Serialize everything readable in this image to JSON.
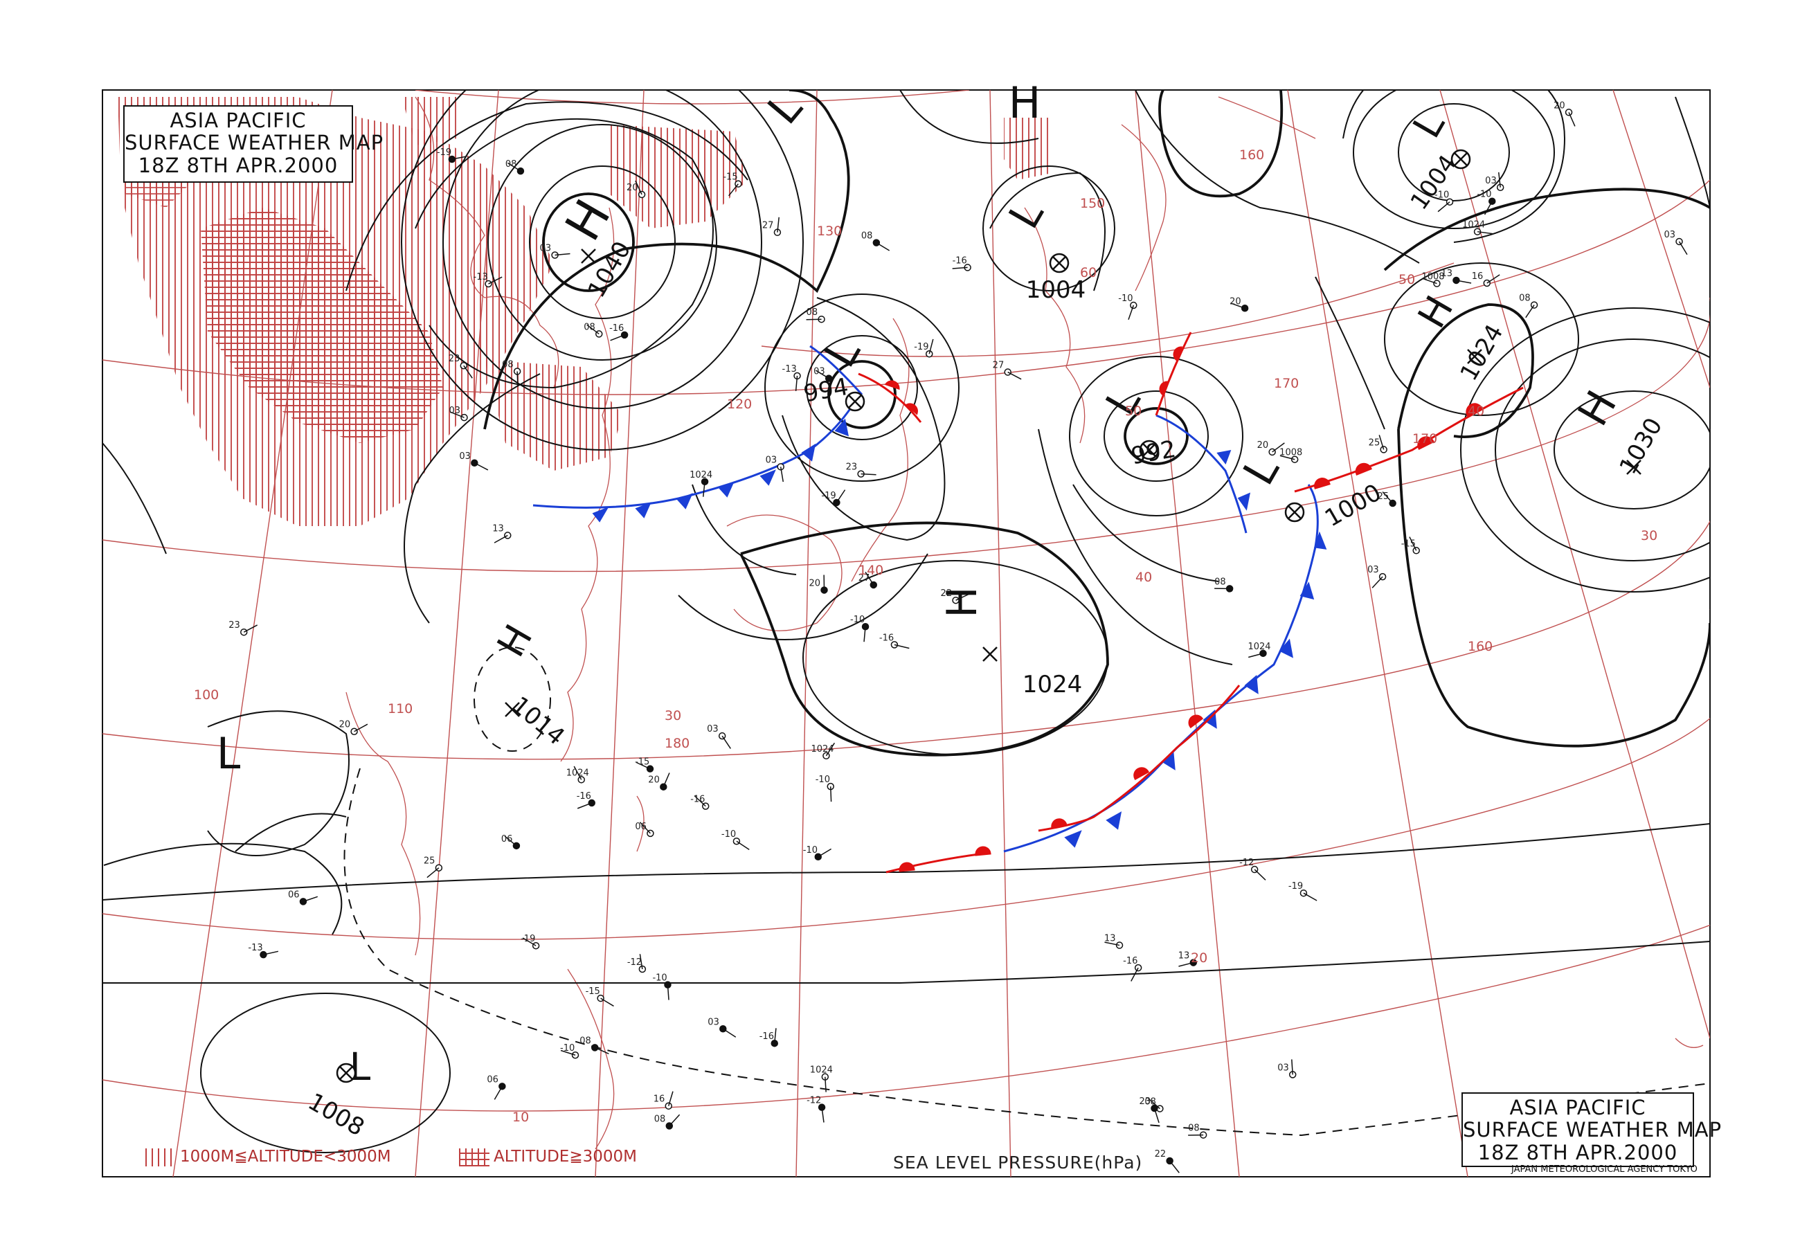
{
  "title": {
    "line1": "ASIA PACIFIC",
    "line2": "SURFACE WEATHER MAP",
    "line3": "18Z  8TH APR.2000"
  },
  "legend": {
    "mid_altitude": "1000M≦ALTITUDE<3000M",
    "high_altitude": "ALTITUDE≧3000M"
  },
  "sea_level_pressure_label": "SEA LEVEL PRESSURE(hPa)",
  "agency": "JAPAN METEOROLOGICAL AGENCY TOKYO",
  "colors": {
    "isobar": "#111111",
    "grid": "#c05050",
    "cold_front": "#1a3fd6",
    "warm_front": "#e01010",
    "terrain_hatch": "#c04040"
  },
  "pressure_systems": [
    {
      "type": "H",
      "value": "1040"
    },
    {
      "type": "L",
      "value": "994"
    },
    {
      "type": "L",
      "value": "1004"
    },
    {
      "type": "L",
      "value": "992"
    },
    {
      "type": "L",
      "value": "1000"
    },
    {
      "type": "L",
      "value": "1004"
    },
    {
      "type": "H",
      "value": "1024"
    },
    {
      "type": "H",
      "value": "1030"
    },
    {
      "type": "H",
      "value": "1024"
    },
    {
      "type": "H",
      "value": "1014"
    },
    {
      "type": "L",
      "value": "1008"
    },
    {
      "type": "L",
      "value": ""
    },
    {
      "type": "H",
      "value": ""
    },
    {
      "type": "L",
      "value": ""
    }
  ],
  "grid_labels": {
    "longitudes": [
      "100",
      "110",
      "120",
      "130",
      "140",
      "150",
      "160",
      "170",
      "180",
      "160",
      "170"
    ],
    "latitudes": [
      "10",
      "20",
      "30",
      "40",
      "50",
      "60",
      "30",
      "40",
      "50"
    ]
  },
  "station_samples": [
    "-10",
    "-16",
    "-19",
    "-15",
    "-13",
    "-12",
    "06",
    "08",
    "03",
    "13",
    "16",
    "20",
    "22",
    "23",
    "25",
    "27",
    "1008",
    "1024"
  ]
}
